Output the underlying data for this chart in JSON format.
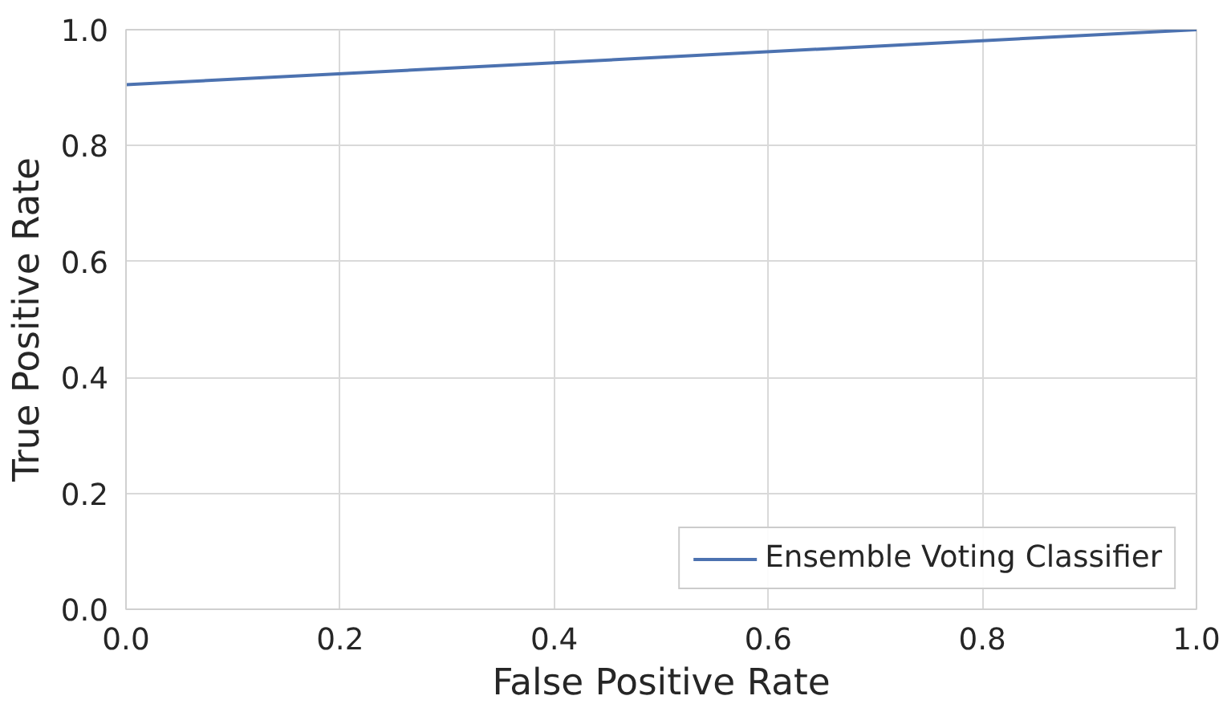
{
  "chart_data": {
    "type": "line",
    "xlabel": "False Positive Rate",
    "ylabel": "True Positive Rate",
    "x": [
      0.0,
      1.0
    ],
    "series": [
      {
        "name": "Ensemble Voting Classifier",
        "color": "#4c72b0",
        "values": [
          0.905,
          1.0
        ]
      }
    ],
    "xlim": [
      0.0,
      1.0
    ],
    "ylim": [
      0.0,
      1.0
    ],
    "xticks": [
      {
        "value": 0.0,
        "label": "0.0"
      },
      0.2,
      0.4,
      0.6,
      0.8,
      {
        "value": 1.0,
        "label": "1.0"
      }
    ],
    "yticks": [
      {
        "value": 0.0,
        "label": "0.0"
      },
      0.2,
      0.4,
      0.6,
      0.8,
      {
        "value": 1.0,
        "label": "1.0"
      }
    ],
    "grid": true,
    "legend": "bottom right",
    "line_style": "solid"
  }
}
